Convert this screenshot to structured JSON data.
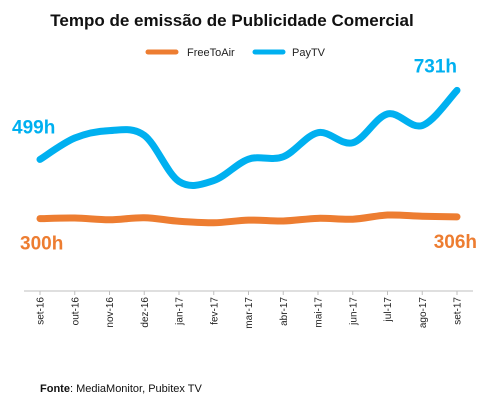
{
  "chart_data": {
    "type": "line",
    "title": "Tempo de emissão de Publicidade Comercial",
    "categories": [
      "set-16",
      "out-16",
      "nov-16",
      "dez-16",
      "jan-17",
      "fev-17",
      "mar-17",
      "abr-17",
      "mai-17",
      "jun-17",
      "jul-17",
      "ago-17",
      "set-17"
    ],
    "series": [
      {
        "name": "FreeToAir",
        "color": "#ED7D31",
        "values": [
          300,
          302,
          296,
          303,
          291,
          286,
          295,
          292,
          301,
          298,
          312,
          308,
          306
        ]
      },
      {
        "name": "PayTV",
        "color": "#00B0F0",
        "values": [
          499,
          571,
          596,
          580,
          425,
          428,
          500,
          508,
          589,
          555,
          652,
          613,
          731
        ]
      }
    ],
    "data_labels": [
      {
        "series": 1,
        "index": 0,
        "text": "499h"
      },
      {
        "series": 1,
        "index": 12,
        "text": "731h"
      },
      {
        "series": 0,
        "index": 0,
        "text": "300h"
      },
      {
        "series": 0,
        "index": 12,
        "text": "306h"
      }
    ],
    "ylim": [
      60,
      840
    ],
    "legend_position": "top",
    "grid": false
  },
  "source": {
    "label": "Fonte",
    "text": ": MediaMonitor, Pubitex TV"
  }
}
